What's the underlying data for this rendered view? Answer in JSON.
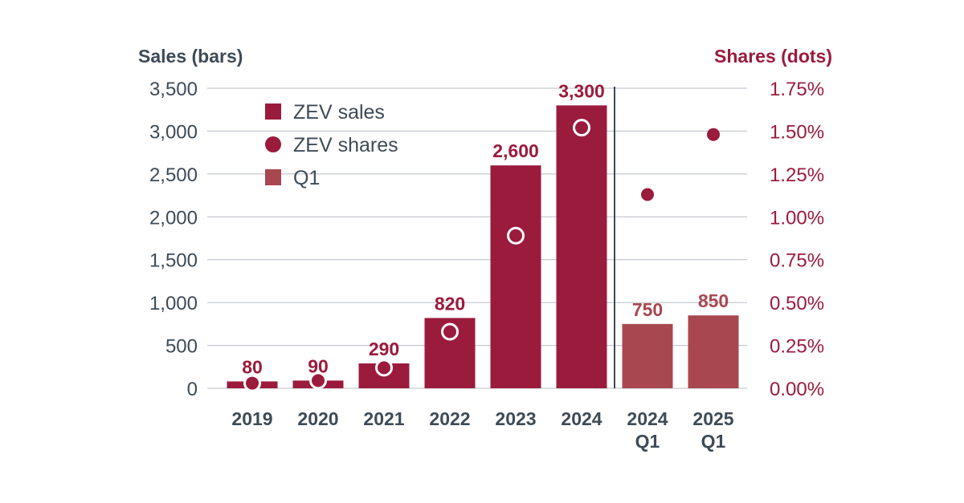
{
  "colors": {
    "main": "#9b1b3d",
    "q1": "#a94750",
    "axis_text": "#3d4b57",
    "grid": "#b8bec4",
    "divider": "#3d4b57",
    "hollow_dot_fill": "#9b1b3d",
    "hollow_dot_stroke": "#ffffff"
  },
  "chart_data": {
    "type": "bar",
    "left_axis_title": "Sales (bars)",
    "right_axis_title": "Shares (dots)",
    "categories": [
      [
        "2019"
      ],
      [
        "2020"
      ],
      [
        "2021"
      ],
      [
        "2022"
      ],
      [
        "2023"
      ],
      [
        "2024"
      ],
      [
        "2024",
        "Q1"
      ],
      [
        "2025",
        "Q1"
      ]
    ],
    "ylim": [
      0,
      3500
    ],
    "y_ticks": [
      0,
      500,
      1000,
      1500,
      2000,
      2500,
      3000,
      3500
    ],
    "y_tick_labels": [
      "0",
      "500",
      "1,000",
      "1,500",
      "2,000",
      "2,500",
      "3,000",
      "3,500"
    ],
    "y2lim": [
      0,
      1.75
    ],
    "y2_ticks": [
      0,
      0.25,
      0.5,
      0.75,
      1.0,
      1.25,
      1.5,
      1.75
    ],
    "y2_tick_labels": [
      "0.00%",
      "0.25%",
      "0.50%",
      "0.75%",
      "1.00%",
      "1.25%",
      "1.50%",
      "1.75%"
    ],
    "series": [
      {
        "name": "ZEV sales",
        "kind": "bar",
        "values": [
          80,
          90,
          290,
          820,
          2600,
          3300,
          750,
          850
        ],
        "labels": [
          "80",
          "90",
          "290",
          "820",
          "2,600",
          "3,300",
          "750",
          "850"
        ],
        "is_q1": [
          false,
          false,
          false,
          false,
          false,
          false,
          true,
          true
        ]
      },
      {
        "name": "ZEV shares",
        "kind": "dot",
        "axis": "right",
        "values": [
          0.03,
          0.045,
          0.12,
          0.33,
          0.89,
          1.52,
          1.13,
          1.48
        ]
      }
    ],
    "legend": [
      {
        "label": "ZEV sales",
        "marker": "square",
        "color_key": "main"
      },
      {
        "label": "ZEV shares",
        "marker": "circle",
        "color_key": "main"
      },
      {
        "label": "Q1",
        "marker": "square",
        "color_key": "q1"
      }
    ],
    "legend_position": "top-left",
    "grid": true,
    "divider_after_index": 5
  }
}
